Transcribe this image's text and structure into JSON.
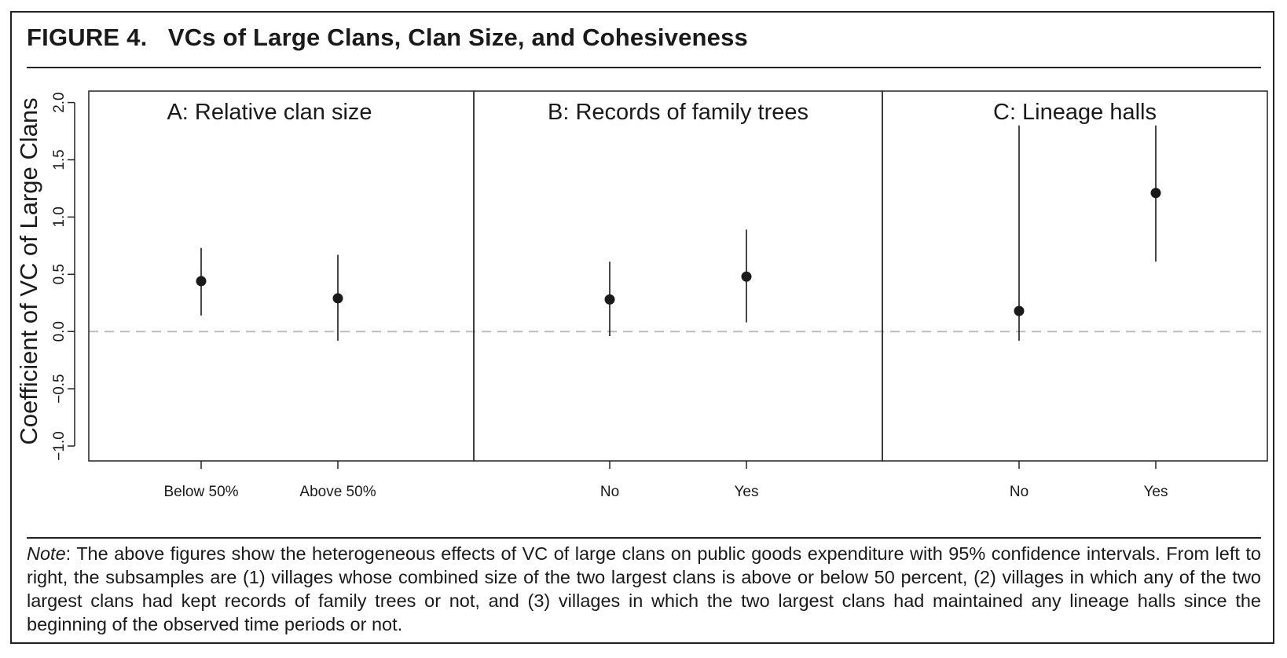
{
  "figure": {
    "number": "FIGURE 4.",
    "title": "VCs of Large Clans, Clan Size, and Cohesiveness"
  },
  "note": {
    "label": "Note",
    "text": ": The above figures show the heterogeneous effects of VC of large clans on public goods expenditure with 95% confidence intervals. From left to right, the subsamples are (1) villages whose combined size of the two largest clans is above or below 50 percent, (2) villages in which any of the two largest clans had kept records of family trees or not, and (3) villages in which the two largest clans had maintained any lineage halls since the beginning of the observed time periods or not."
  },
  "chart_data": {
    "type": "scatter",
    "ylabel": "Coefficient of VC of Large Clans",
    "ylim": [
      -1.13,
      2.1
    ],
    "yticks": [
      -1.0,
      -0.5,
      0.0,
      0.5,
      1.0,
      1.5,
      2.0
    ],
    "ytick_labels": [
      "−1.0",
      "−0.5",
      "0.0",
      "0.5",
      "1.0",
      "1.5",
      "2.0"
    ],
    "reference_line": 0,
    "grid": false,
    "colors": {
      "point": "#1a1a1a",
      "reference_line": "#bdbdbd",
      "axis": "#222222"
    },
    "panels": [
      {
        "title": "A: Relative clan size",
        "categories": [
          "Below 50%",
          "Above 50%"
        ],
        "estimates": [
          0.44,
          0.29
        ],
        "ci_low": [
          0.14,
          -0.08
        ],
        "ci_high": [
          0.73,
          0.67
        ]
      },
      {
        "title": "B: Records of family trees",
        "categories": [
          "No",
          "Yes"
        ],
        "estimates": [
          0.28,
          0.48
        ],
        "ci_low": [
          -0.04,
          0.08
        ],
        "ci_high": [
          0.61,
          0.89
        ]
      },
      {
        "title": "C: Lineage halls",
        "categories": [
          "No",
          "Yes"
        ],
        "estimates": [
          0.18,
          1.21
        ],
        "ci_low": [
          -0.08,
          0.61
        ],
        "ci_high": [
          1.8,
          1.8
        ]
      }
    ]
  }
}
